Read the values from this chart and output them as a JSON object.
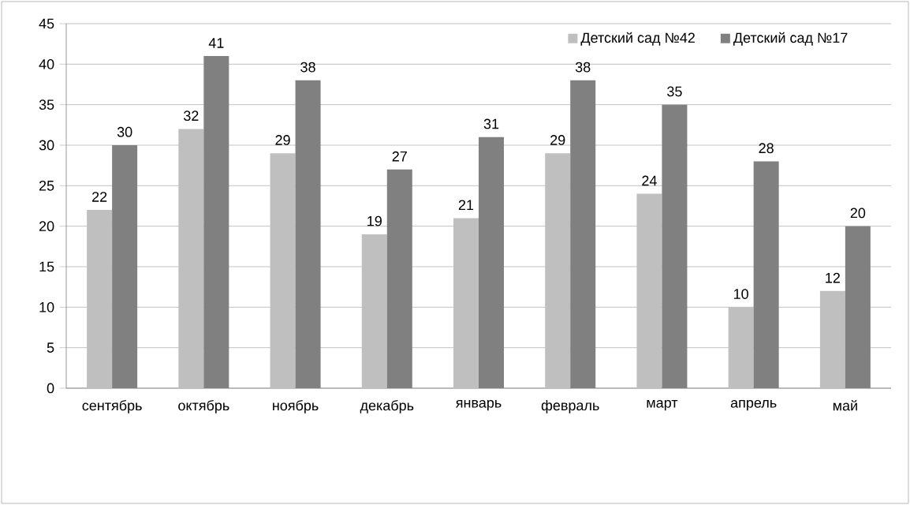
{
  "chart_data": {
    "type": "bar",
    "categories": [
      "сентябрь",
      "октябрь",
      "ноябрь",
      "декабрь",
      "январь",
      "февраль",
      "март",
      "апрель",
      "май"
    ],
    "series": [
      {
        "name": "Детский сад №42",
        "color": "#bfbfbf",
        "values": [
          22,
          32,
          29,
          19,
          21,
          29,
          24,
          10,
          12
        ]
      },
      {
        "name": "Детский сад №17",
        "color": "#808080",
        "values": [
          30,
          41,
          38,
          27,
          31,
          38,
          35,
          28,
          20
        ]
      }
    ],
    "ylim": [
      0,
      45
    ],
    "yticks": [
      0,
      5,
      10,
      15,
      20,
      25,
      30,
      35,
      40,
      45
    ],
    "grid": "y",
    "legend": "top right",
    "data_labels": true
  }
}
